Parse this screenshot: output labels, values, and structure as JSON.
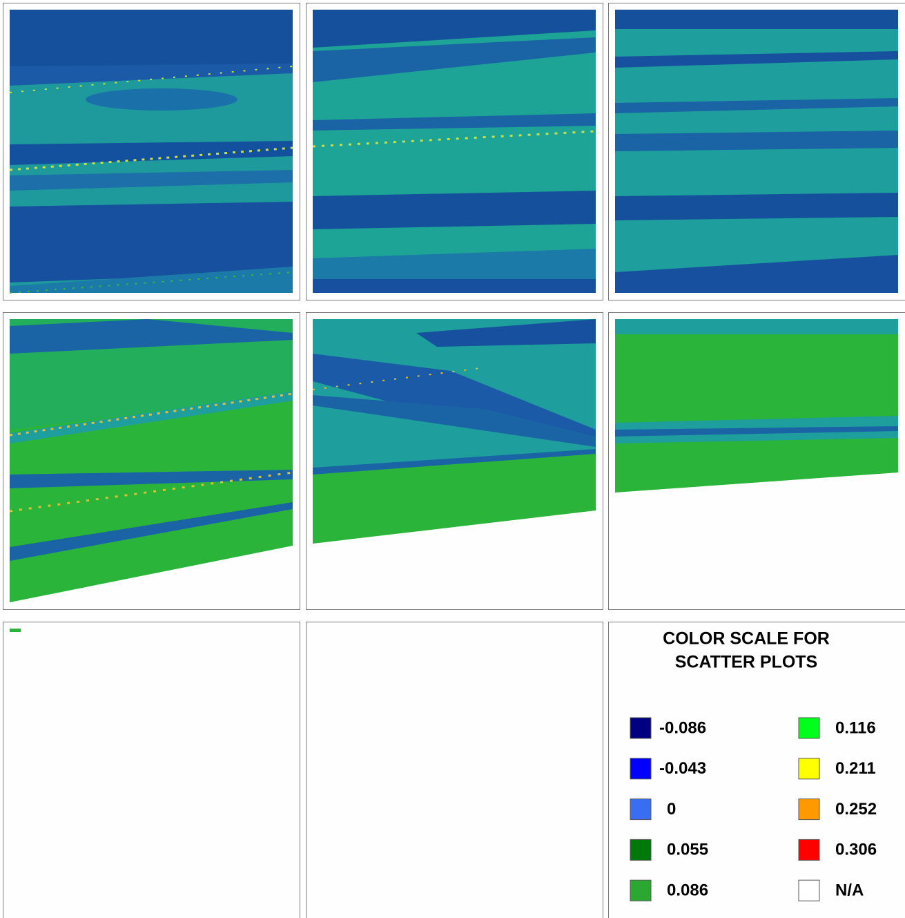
{
  "legend": {
    "title": [
      "COLOR  SCALE  FOR",
      "SCATTER  PLOTS"
    ],
    "entries": [
      {
        "label": "-0.086",
        "color": "#000080"
      },
      {
        "label": "-0.043",
        "color": "#0000ff"
      },
      {
        "label": "0",
        "color": "#3a6ef2"
      },
      {
        "label": "0.055",
        "color": "#00780a"
      },
      {
        "label": "0.086",
        "color": "#2aa830"
      },
      {
        "label": "0.116",
        "color": "#00ff1a"
      },
      {
        "label": "0.211",
        "color": "#ffff00"
      },
      {
        "label": "0.252",
        "color": "#ff9900"
      },
      {
        "label": "0.306",
        "color": "#ff0000"
      },
      {
        "label": "N/A",
        "color": "#ffffff"
      }
    ]
  }
}
